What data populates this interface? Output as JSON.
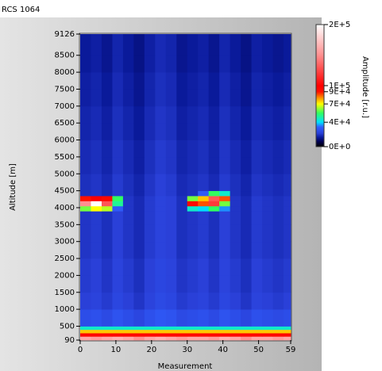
{
  "chart_data": {
    "type": "heatmap",
    "title": "RCS 1064",
    "x_label": "Measurement",
    "y_label": "Altitude [m]",
    "colorbar_label": "Amplitude [r.u.]",
    "xlim": [
      0,
      59
    ],
    "ylim": [
      90,
      9126
    ],
    "xticks": [
      0,
      10,
      20,
      30,
      40,
      50,
      59
    ],
    "yticks": [
      90,
      500,
      1000,
      1500,
      2000,
      2500,
      3000,
      3500,
      4000,
      4500,
      5000,
      5500,
      6000,
      6500,
      7000,
      7500,
      8000,
      8500,
      9126
    ],
    "zlim": [
      0,
      200000
    ],
    "zticks": [
      {
        "value": 200000,
        "label": "2E+5"
      },
      {
        "value": 100000,
        "label": "1E+5"
      },
      {
        "value": 90000,
        "label": "9E+4"
      },
      {
        "value": 70000,
        "label": "7E+4"
      },
      {
        "value": 40000,
        "label": "4E+4"
      },
      {
        "value": 0,
        "label": "0E+0"
      }
    ],
    "colormap": [
      {
        "value": 0,
        "color": "#000000"
      },
      {
        "value": 8000,
        "color": "#000050"
      },
      {
        "value": 15000,
        "color": "#0a1a9a"
      },
      {
        "value": 22000,
        "color": "#2a40d8"
      },
      {
        "value": 32000,
        "color": "#3060ff"
      },
      {
        "value": 40000,
        "color": "#00e0ff"
      },
      {
        "value": 55000,
        "color": "#30ff60"
      },
      {
        "value": 70000,
        "color": "#ffff00"
      },
      {
        "value": 80000,
        "color": "#ff9000"
      },
      {
        "value": 90000,
        "color": "#ff1000"
      },
      {
        "value": 100000,
        "color": "#ff0000"
      },
      {
        "value": 150000,
        "color": "#ff9090"
      },
      {
        "value": 200000,
        "color": "#ffffff"
      }
    ],
    "x_edges": [
      0,
      3,
      6,
      9,
      12,
      15,
      18,
      21,
      24,
      27,
      30,
      33,
      36,
      39,
      42,
      45,
      48,
      51,
      54,
      57,
      59
    ],
    "y_edges": [
      90,
      200,
      300,
      400,
      500,
      1000,
      1500,
      2000,
      2500,
      3000,
      3500,
      3900,
      4050,
      4200,
      4350,
      4500,
      5000,
      5500,
      6000,
      6500,
      7000,
      7500,
      8000,
      8500,
      9126
    ],
    "z": [
      [
        160000,
        155000,
        160000,
        165000,
        160000,
        150000,
        160000,
        165000,
        160000,
        155000,
        160000,
        160000,
        155000,
        165000,
        160000,
        150000,
        160000,
        160000,
        155000,
        160000
      ],
      [
        95000,
        95000,
        95000,
        95000,
        95000,
        95000,
        95000,
        95000,
        95000,
        95000,
        95000,
        95000,
        95000,
        95000,
        95000,
        95000,
        95000,
        95000,
        95000,
        95000
      ],
      [
        75000,
        75000,
        75000,
        75000,
        75000,
        75000,
        75000,
        75000,
        75000,
        75000,
        75000,
        75000,
        75000,
        75000,
        75000,
        75000,
        75000,
        75000,
        75000,
        75000
      ],
      [
        45000,
        45000,
        45000,
        45000,
        45000,
        45000,
        45000,
        45000,
        45000,
        45000,
        45000,
        45000,
        45000,
        45000,
        45000,
        45000,
        45000,
        45000,
        45000,
        45000
      ],
      [
        26000,
        27000,
        25000,
        28000,
        26000,
        24000,
        27000,
        29000,
        28000,
        25000,
        26000,
        27000,
        25000,
        28000,
        26000,
        24000,
        27000,
        26000,
        25000,
        26000
      ],
      [
        22000,
        23000,
        21000,
        24000,
        22000,
        20000,
        23000,
        25000,
        24000,
        21000,
        22000,
        23000,
        21000,
        24000,
        22000,
        20000,
        23000,
        22000,
        21000,
        22000
      ],
      [
        21000,
        22000,
        20000,
        23000,
        21000,
        19000,
        22000,
        24000,
        23000,
        20000,
        21000,
        22000,
        20000,
        23000,
        21000,
        19000,
        22000,
        21000,
        20000,
        21000
      ],
      [
        21000,
        22000,
        20000,
        23000,
        21000,
        19000,
        22000,
        24000,
        23000,
        20000,
        21000,
        22000,
        20000,
        23000,
        21000,
        19000,
        22000,
        21000,
        20000,
        21000
      ],
      [
        20000,
        21000,
        19000,
        22000,
        20000,
        18000,
        21000,
        23000,
        22000,
        19000,
        20000,
        21000,
        19000,
        22000,
        20000,
        18000,
        21000,
        20000,
        19000,
        20000
      ],
      [
        20000,
        21000,
        19000,
        22000,
        20000,
        18000,
        21000,
        23000,
        22000,
        19000,
        20000,
        21000,
        19000,
        22000,
        20000,
        18000,
        21000,
        20000,
        19000,
        20000
      ],
      [
        20000,
        21000,
        19000,
        22000,
        20000,
        18000,
        21000,
        23000,
        22000,
        19000,
        20000,
        21000,
        19000,
        22000,
        20000,
        18000,
        21000,
        20000,
        19000,
        20000
      ],
      [
        60000,
        70000,
        65000,
        30000,
        20000,
        18000,
        21000,
        23000,
        22000,
        19000,
        45000,
        40000,
        55000,
        35000,
        20000,
        18000,
        21000,
        20000,
        19000,
        20000
      ],
      [
        150000,
        200000,
        130000,
        50000,
        20000,
        18000,
        21000,
        23000,
        22000,
        19000,
        95000,
        85000,
        120000,
        60000,
        20000,
        18000,
        21000,
        20000,
        19000,
        20000
      ],
      [
        90000,
        100000,
        95000,
        55000,
        20000,
        18000,
        21000,
        23000,
        22000,
        19000,
        60000,
        75000,
        130000,
        85000,
        20000,
        18000,
        21000,
        20000,
        19000,
        20000
      ],
      [
        19000,
        20000,
        18000,
        21000,
        19000,
        17000,
        20000,
        22000,
        21000,
        18000,
        19000,
        30000,
        55000,
        45000,
        19000,
        17000,
        20000,
        19000,
        18000,
        19000
      ],
      [
        19000,
        20000,
        18000,
        21000,
        19000,
        17000,
        20000,
        22000,
        21000,
        18000,
        19000,
        20000,
        18000,
        21000,
        19000,
        17000,
        20000,
        19000,
        18000,
        19000
      ],
      [
        18000,
        19000,
        17000,
        20000,
        18000,
        16000,
        19000,
        21000,
        20000,
        17000,
        18000,
        19000,
        17000,
        20000,
        18000,
        16000,
        19000,
        18000,
        17000,
        18000
      ],
      [
        18000,
        19000,
        17000,
        20000,
        18000,
        16000,
        19000,
        21000,
        20000,
        17000,
        18000,
        19000,
        17000,
        20000,
        18000,
        16000,
        19000,
        18000,
        17000,
        18000
      ],
      [
        17000,
        18000,
        16000,
        19000,
        17000,
        15000,
        18000,
        20000,
        19000,
        16000,
        17000,
        18000,
        16000,
        19000,
        17000,
        15000,
        18000,
        17000,
        16000,
        17000
      ],
      [
        17000,
        18000,
        16000,
        19000,
        17000,
        15000,
        18000,
        20000,
        19000,
        16000,
        17000,
        18000,
        16000,
        19000,
        17000,
        15000,
        18000,
        17000,
        16000,
        17000
      ],
      [
        16000,
        17000,
        15000,
        18000,
        16000,
        14000,
        17000,
        19000,
        18000,
        15000,
        16000,
        17000,
        15000,
        18000,
        16000,
        14000,
        17000,
        16000,
        15000,
        16000
      ],
      [
        16000,
        17000,
        15000,
        18000,
        16000,
        14000,
        17000,
        19000,
        18000,
        15000,
        16000,
        17000,
        15000,
        18000,
        16000,
        14000,
        17000,
        16000,
        15000,
        16000
      ],
      [
        15000,
        16000,
        14000,
        17000,
        15000,
        13000,
        16000,
        18000,
        17000,
        14000,
        15000,
        16000,
        14000,
        17000,
        15000,
        13000,
        16000,
        15000,
        14000,
        15000
      ],
      [
        15000,
        16000,
        14000,
        17000,
        15000,
        13000,
        16000,
        18000,
        17000,
        14000,
        15000,
        16000,
        14000,
        17000,
        15000,
        13000,
        16000,
        15000,
        14000,
        15000
      ]
    ]
  }
}
